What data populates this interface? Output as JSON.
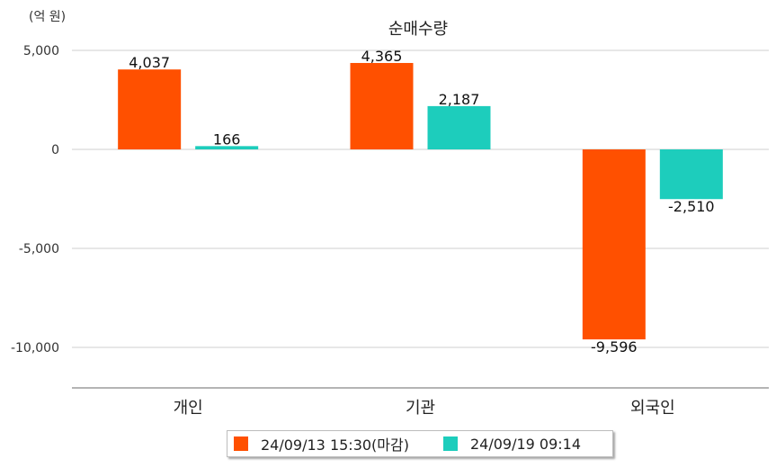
{
  "chart_data": {
    "type": "bar",
    "title": "순매수량",
    "unit_label": "(억 원)",
    "categories": [
      "개인",
      "기관",
      "외국인"
    ],
    "series": [
      {
        "name": "24/09/13 15:30(마감)",
        "color": "#ff5000",
        "values": [
          4037,
          4365,
          -9596
        ],
        "labels": [
          "4,037",
          "4,365",
          "-9,596"
        ]
      },
      {
        "name": "24/09/19 09:14",
        "color": "#1dcdbc",
        "values": [
          166,
          2187,
          -2510
        ],
        "labels": [
          "166",
          "2,187",
          "-2,510"
        ]
      }
    ],
    "yticks": [
      5000,
      0,
      -5000,
      -10000
    ],
    "ytick_labels": [
      "5,000",
      "0",
      "-5,000",
      "-10,000"
    ],
    "ylim": [
      -12000,
      5000
    ],
    "grid": true,
    "legend_position": "bottom-center"
  }
}
